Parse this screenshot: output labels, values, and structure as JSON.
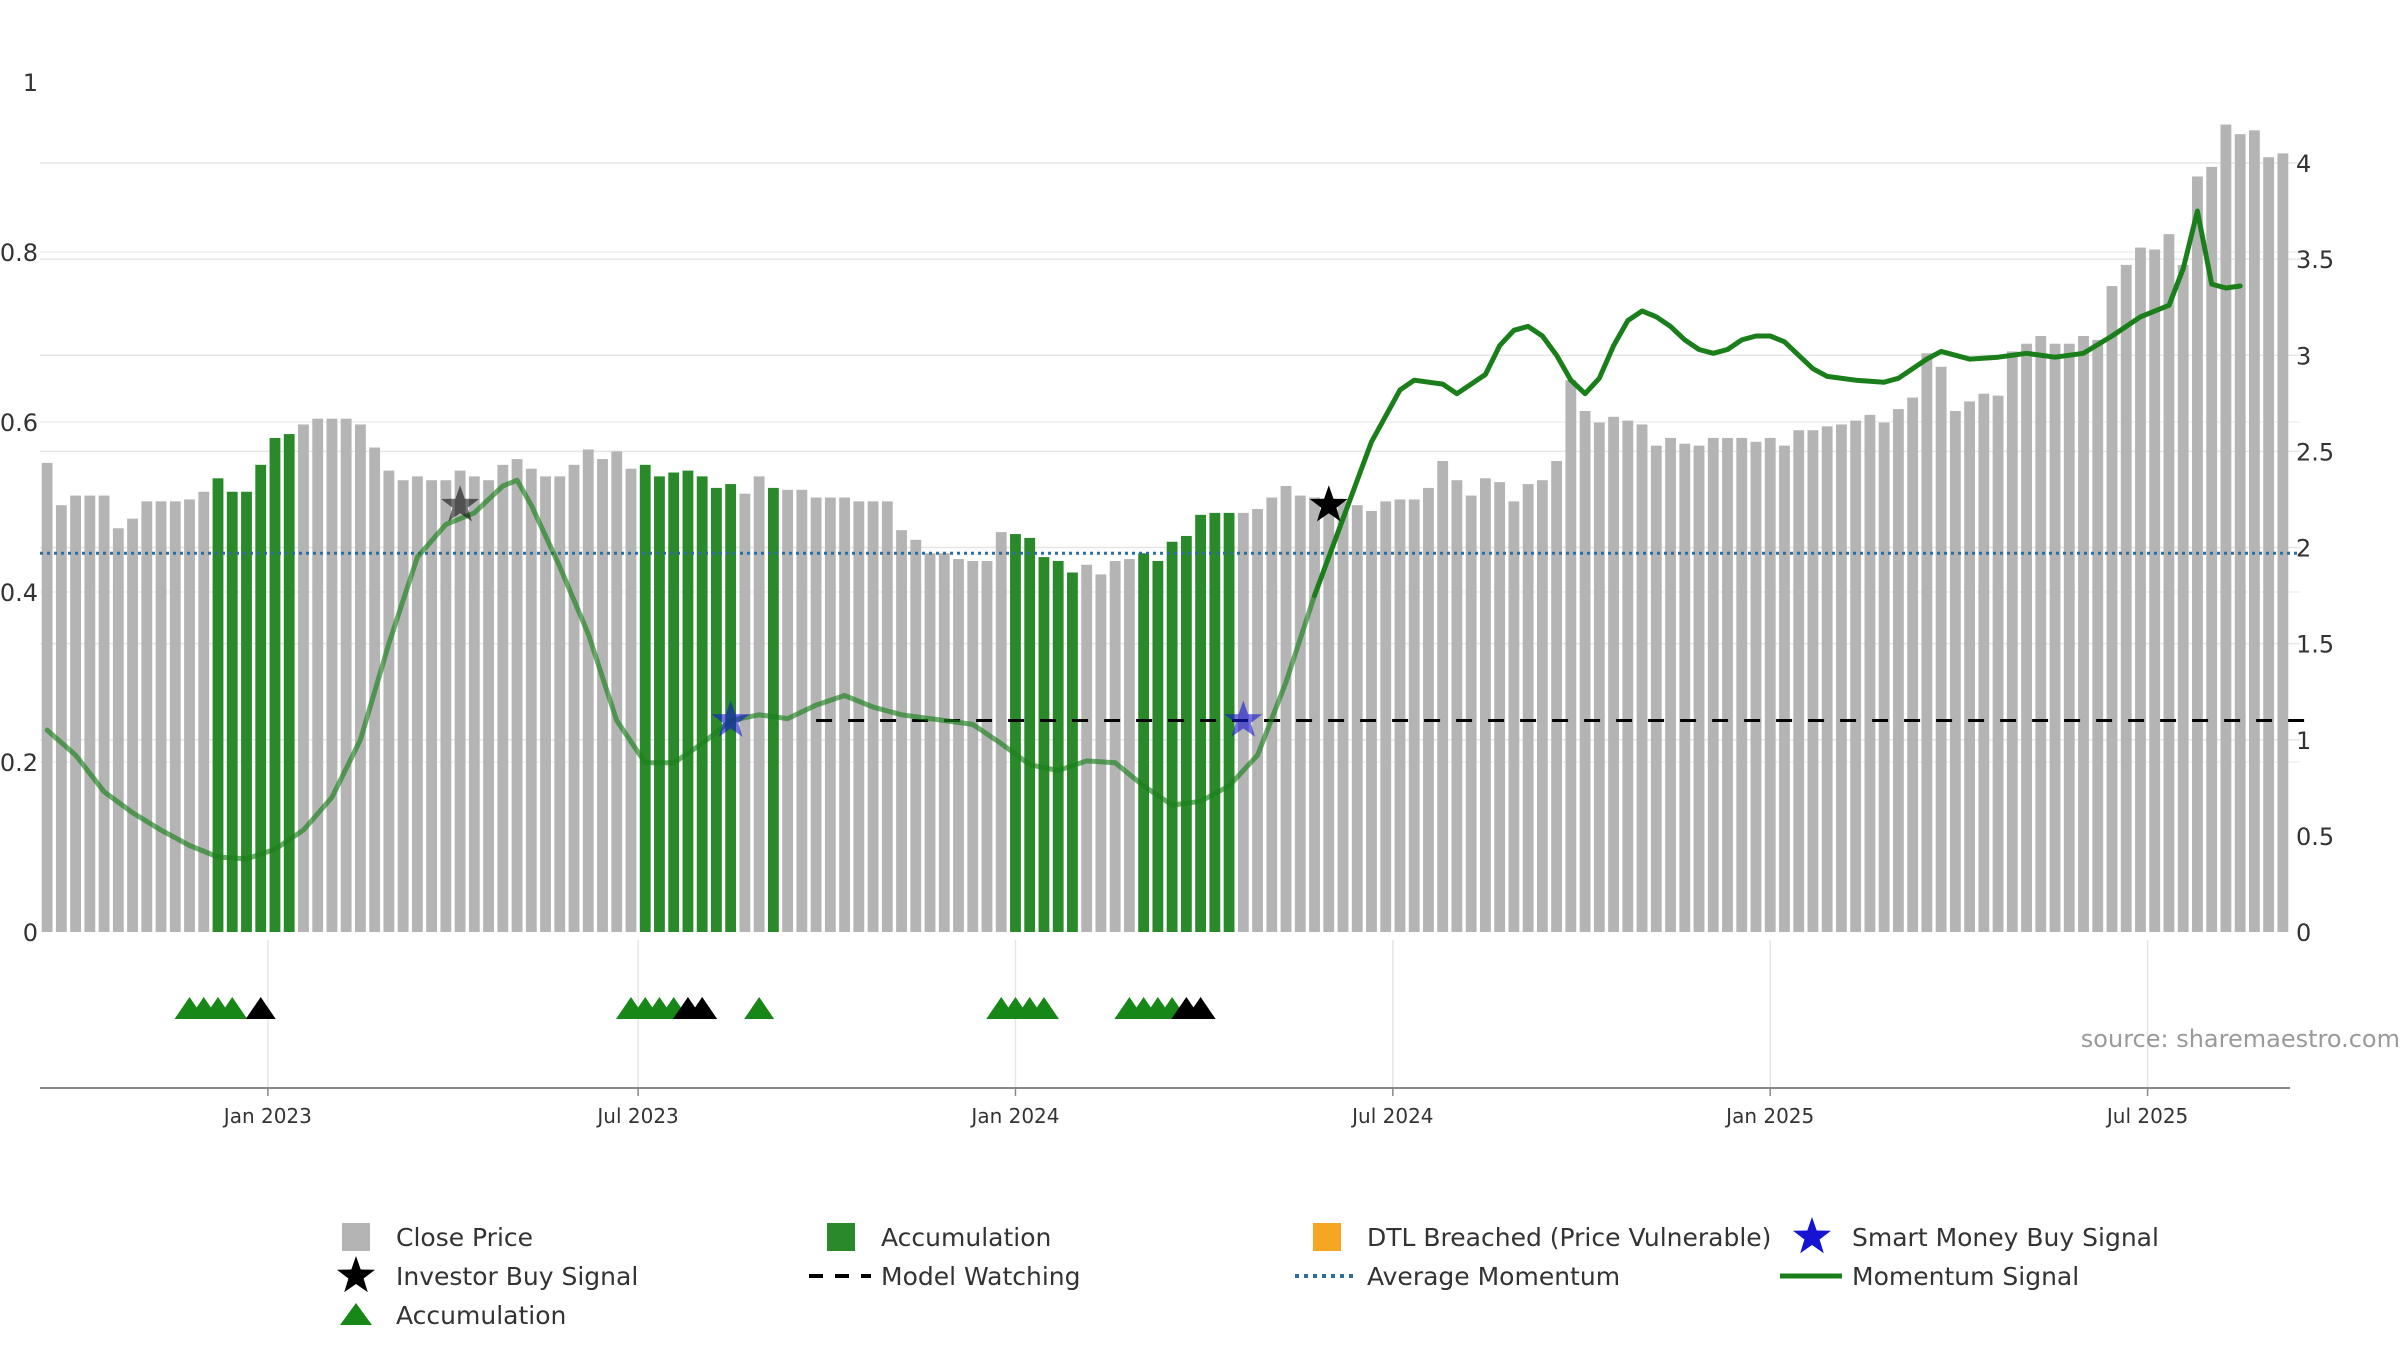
{
  "chart_data": {
    "type": "bar",
    "x_ticks": [
      "Jan 2023",
      "Jul 2023",
      "Jan 2024",
      "Jul 2024",
      "Jan 2025",
      "Jul 2025"
    ],
    "left_axis": {
      "ticks": [
        "0",
        "0.2",
        "0.4",
        "0.6",
        "0.8",
        "1"
      ],
      "ylim": [
        0,
        1
      ]
    },
    "right_axis": {
      "ticks": [
        "0",
        "0.5",
        "1",
        "1.5",
        "2",
        "2.5",
        "3",
        "3.5",
        "4"
      ],
      "ylim": [
        0,
        4
      ]
    },
    "series": [
      {
        "name": "Close Price",
        "type": "bar",
        "color": "#b4b4b4",
        "note": "weekly bars, right axis units",
        "values": [
          2.44,
          2.22,
          2.27,
          2.27,
          2.27,
          2.1,
          2.15,
          2.24,
          2.24,
          2.24,
          2.25,
          2.29,
          2.36,
          2.29,
          2.29,
          2.43,
          2.57,
          2.59,
          2.64,
          2.67,
          2.67,
          2.67,
          2.64,
          2.52,
          2.4,
          2.35,
          2.37,
          2.35,
          2.35,
          2.4,
          2.37,
          2.35,
          2.43,
          2.46,
          2.41,
          2.37,
          2.37,
          2.43,
          2.51,
          2.46,
          2.5,
          2.41,
          2.43,
          2.37,
          2.39,
          2.4,
          2.37,
          2.31,
          2.33,
          2.28,
          2.37,
          2.31,
          2.3,
          2.3,
          2.26,
          2.26,
          2.26,
          2.24,
          2.24,
          2.24,
          2.09,
          2.04,
          1.97,
          1.97,
          1.94,
          1.93,
          1.93,
          2.08,
          2.07,
          2.05,
          1.95,
          1.93,
          1.87,
          1.91,
          1.86,
          1.93,
          1.94,
          1.97,
          1.93,
          2.03,
          2.06,
          2.17,
          2.18,
          2.18,
          2.18,
          2.2,
          2.26,
          2.32,
          2.27,
          2.26,
          2.24,
          2.24,
          2.22,
          2.19,
          2.24,
          2.25,
          2.25,
          2.31,
          2.45,
          2.35,
          2.27,
          2.36,
          2.34,
          2.24,
          2.33,
          2.35,
          2.45,
          2.87,
          2.71,
          2.65,
          2.68,
          2.66,
          2.64,
          2.53,
          2.57,
          2.54,
          2.53,
          2.57,
          2.57,
          2.57,
          2.55,
          2.57,
          2.53,
          2.61,
          2.61,
          2.63,
          2.64,
          2.66,
          2.69,
          2.65,
          2.72,
          2.78,
          3.01,
          2.94,
          2.71,
          2.76,
          2.8,
          2.79,
          3.02,
          3.06,
          3.1,
          3.06,
          3.06,
          3.1,
          3.08,
          3.36,
          3.47,
          3.56,
          3.55,
          3.63,
          3.47,
          3.93,
          3.98,
          4.2,
          4.15,
          4.17,
          4.03,
          4.05
        ],
        "accumulation_bar_indices": [
          12,
          13,
          14,
          15,
          16,
          17,
          42,
          43,
          44,
          45,
          46,
          47,
          48,
          51,
          68,
          69,
          70,
          71,
          72,
          77,
          78,
          79,
          80,
          81,
          82,
          83
        ]
      },
      {
        "name": "Accumulation",
        "type": "bar",
        "color": "#2a8a2a"
      },
      {
        "name": "DTL Breached (Price Vulnerable)",
        "type": "marker",
        "color": "#f5a623"
      },
      {
        "name": "Smart Money Buy Signal",
        "type": "marker",
        "color": "#1414d2",
        "points": [
          {
            "bar_index": 48,
            "value": 1.1
          },
          {
            "bar_index": 84,
            "value": 1.1
          }
        ]
      },
      {
        "name": "Investor Buy Signal",
        "type": "marker",
        "color": "#000000",
        "points": [
          {
            "bar_index": 29,
            "value": 2.22
          },
          {
            "bar_index": 90,
            "value": 2.22
          }
        ]
      },
      {
        "name": "Model Watching",
        "type": "line",
        "style": "dashed",
        "color": "#000000",
        "value": 1.1,
        "from_bar_index": 54,
        "to_bar_index": 159
      },
      {
        "name": "Average Momentum",
        "type": "line",
        "style": "dotted",
        "color": "#2e6e9e",
        "value": 1.97
      },
      {
        "name": "Momentum Signal",
        "type": "line",
        "color": "#1a7f1a",
        "points": [
          [
            0,
            1.05
          ],
          [
            2,
            0.92
          ],
          [
            4,
            0.73
          ],
          [
            6,
            0.62
          ],
          [
            8,
            0.53
          ],
          [
            10,
            0.45
          ],
          [
            12,
            0.39
          ],
          [
            14,
            0.38
          ],
          [
            16,
            0.43
          ],
          [
            18,
            0.53
          ],
          [
            20,
            0.7
          ],
          [
            22,
            1.0
          ],
          [
            24,
            1.5
          ],
          [
            26,
            1.95
          ],
          [
            28,
            2.12
          ],
          [
            30,
            2.18
          ],
          [
            32,
            2.32
          ],
          [
            33,
            2.35
          ],
          [
            34,
            2.22
          ],
          [
            36,
            1.9
          ],
          [
            38,
            1.55
          ],
          [
            40,
            1.1
          ],
          [
            42,
            0.88
          ],
          [
            44,
            0.88
          ],
          [
            46,
            0.98
          ],
          [
            48,
            1.1
          ],
          [
            50,
            1.13
          ],
          [
            52,
            1.11
          ],
          [
            54,
            1.18
          ],
          [
            56,
            1.23
          ],
          [
            58,
            1.17
          ],
          [
            60,
            1.13
          ],
          [
            62,
            1.11
          ],
          [
            65,
            1.08
          ],
          [
            67,
            0.98
          ],
          [
            69,
            0.87
          ],
          [
            71,
            0.84
          ],
          [
            73,
            0.89
          ],
          [
            75,
            0.88
          ],
          [
            77,
            0.76
          ],
          [
            79,
            0.66
          ],
          [
            81,
            0.68
          ],
          [
            83,
            0.76
          ],
          [
            85,
            0.92
          ],
          [
            87,
            1.3
          ],
          [
            89,
            1.75
          ],
          [
            91,
            2.15
          ],
          [
            93,
            2.55
          ],
          [
            95,
            2.82
          ],
          [
            96,
            2.87
          ],
          [
            98,
            2.85
          ],
          [
            99,
            2.8
          ],
          [
            101,
            2.9
          ],
          [
            102,
            3.05
          ],
          [
            103,
            3.13
          ],
          [
            104,
            3.15
          ],
          [
            105,
            3.1
          ],
          [
            106,
            3.0
          ],
          [
            107,
            2.87
          ],
          [
            108,
            2.8
          ],
          [
            109,
            2.88
          ],
          [
            110,
            3.05
          ],
          [
            111,
            3.18
          ],
          [
            112,
            3.23
          ],
          [
            113,
            3.2
          ],
          [
            114,
            3.15
          ],
          [
            115,
            3.08
          ],
          [
            116,
            3.03
          ],
          [
            117,
            3.01
          ],
          [
            118,
            3.03
          ],
          [
            119,
            3.08
          ],
          [
            120,
            3.1
          ],
          [
            121,
            3.1
          ],
          [
            122,
            3.07
          ],
          [
            123,
            3.0
          ],
          [
            124,
            2.93
          ],
          [
            125,
            2.89
          ],
          [
            127,
            2.87
          ],
          [
            129,
            2.86
          ],
          [
            130,
            2.88
          ],
          [
            131,
            2.93
          ],
          [
            132,
            2.98
          ],
          [
            133,
            3.02
          ],
          [
            135,
            2.98
          ],
          [
            137,
            2.99
          ],
          [
            139,
            3.01
          ],
          [
            141,
            2.99
          ],
          [
            143,
            3.01
          ],
          [
            145,
            3.1
          ],
          [
            147,
            3.2
          ],
          [
            149,
            3.26
          ],
          [
            150,
            3.45
          ],
          [
            151,
            3.75
          ],
          [
            152,
            3.37
          ],
          [
            153,
            3.35
          ],
          [
            154,
            3.36
          ]
        ]
      },
      {
        "name": "Accumulation",
        "type": "marker",
        "color": "#178717",
        "markers_green_bar_indices": [
          10,
          11,
          12,
          13,
          41,
          42,
          43,
          44,
          50,
          67,
          68,
          69,
          70,
          76,
          77,
          78,
          79
        ],
        "markers_black_bar_indices": [
          15,
          45,
          46,
          80,
          81
        ]
      }
    ],
    "source": "source: sharemaestro.com",
    "legend_position": "bottom",
    "grid": true
  }
}
